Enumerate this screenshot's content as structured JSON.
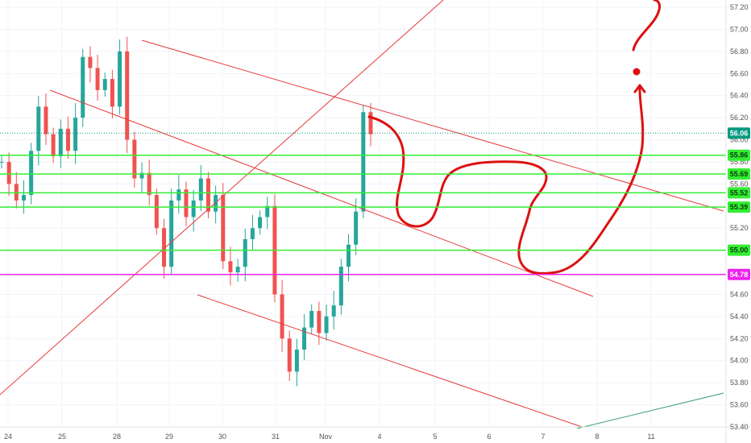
{
  "chart_data": {
    "type": "candlestick",
    "title": "",
    "xlabel": "",
    "ylabel": "",
    "ylim": [
      53.4,
      57.2
    ],
    "y_ticks": [
      "53.40",
      "53.60",
      "53.80",
      "54.00",
      "54.20",
      "54.40",
      "54.60",
      "54.80",
      "55.00",
      "55.20",
      "55.40",
      "55.60",
      "55.80",
      "56.00",
      "56.20",
      "56.40",
      "56.60",
      "56.80",
      "57.00",
      "57.20"
    ],
    "x_ticks": [
      "24",
      "25",
      "28",
      "29",
      "30",
      "31",
      "Nov",
      "4",
      "5",
      "6",
      "7",
      "8",
      "11"
    ],
    "grid": true,
    "price_series_close": [
      55.8,
      55.6,
      55.45,
      55.5,
      55.9,
      56.3,
      56.05,
      55.85,
      56.1,
      55.9,
      56.2,
      56.75,
      56.65,
      56.45,
      56.55,
      56.3,
      56.8,
      56.0,
      55.65,
      55.7,
      55.5,
      55.2,
      54.85,
      55.45,
      55.55,
      55.3,
      55.45,
      55.65,
      55.35,
      55.5,
      54.9,
      54.8,
      54.85,
      55.1,
      55.2,
      55.3,
      55.4,
      54.6,
      54.2,
      53.9,
      54.1,
      54.3,
      54.45,
      54.25,
      54.4,
      54.5,
      54.85,
      55.05,
      55.35,
      56.25,
      56.05
    ],
    "current_price": {
      "label": "56.06",
      "value": 56.06,
      "color": "#089981"
    },
    "support_levels": [
      {
        "label": "55.86",
        "value": 55.86,
        "color": "#33ee33"
      },
      {
        "label": "55.69",
        "value": 55.69,
        "color": "#33ee33"
      },
      {
        "label": "55.52",
        "value": 55.52,
        "color": "#33ee33"
      },
      {
        "label": "55.39",
        "value": 55.39,
        "color": "#33ee33"
      },
      {
        "label": "55.00",
        "value": 55.0,
        "color": "#33ee33"
      },
      {
        "label": "54.78",
        "value": 54.78,
        "color": "#ee22ee"
      }
    ],
    "annotations": [
      "downtrend channel lines",
      "rising trendline",
      "projected path arrow",
      "question mark"
    ]
  },
  "colors": {
    "up": "#26a69a",
    "down": "#ef5350",
    "trend": "#e83a3a",
    "marker": "#dd1111",
    "green_trend": "#3aa070"
  }
}
